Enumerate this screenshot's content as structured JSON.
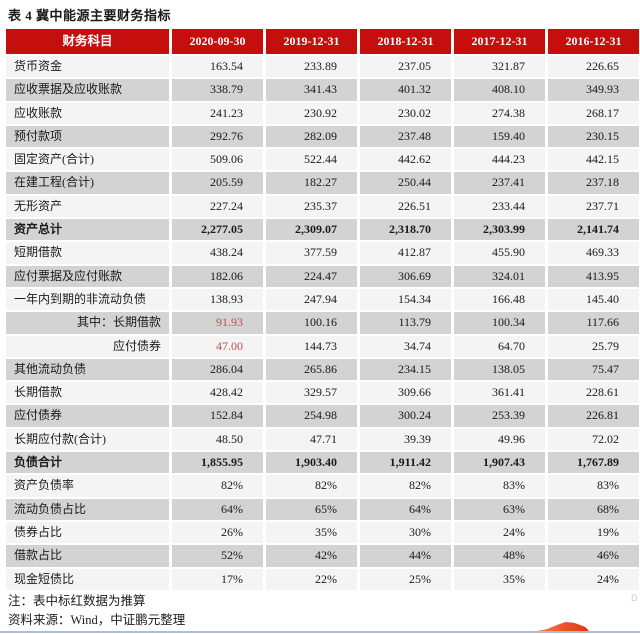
{
  "title": "表 4 冀中能源主要财务指标",
  "table": {
    "columns": [
      "财务科目",
      "2020-09-30",
      "2019-12-31",
      "2018-12-31",
      "2017-12-31",
      "2016-12-31"
    ],
    "rows": [
      {
        "label": "货币资金",
        "values": [
          "163.54",
          "233.89",
          "237.05",
          "321.87",
          "226.65"
        ]
      },
      {
        "label": "应收票据及应收账款",
        "values": [
          "338.79",
          "341.43",
          "401.32",
          "408.10",
          "349.93"
        ]
      },
      {
        "label": "应收账款",
        "values": [
          "241.23",
          "230.92",
          "230.02",
          "274.38",
          "268.17"
        ]
      },
      {
        "label": "预付款项",
        "values": [
          "292.76",
          "282.09",
          "237.48",
          "159.40",
          "230.15"
        ]
      },
      {
        "label": "固定资产(合计)",
        "values": [
          "509.06",
          "522.44",
          "442.62",
          "444.23",
          "442.15"
        ]
      },
      {
        "label": "在建工程(合计)",
        "values": [
          "205.59",
          "182.27",
          "250.44",
          "237.41",
          "237.18"
        ]
      },
      {
        "label": "无形资产",
        "values": [
          "227.24",
          "235.37",
          "226.51",
          "233.44",
          "237.71"
        ]
      },
      {
        "label": "资产总计",
        "bold": true,
        "values": [
          "2,277.05",
          "2,309.07",
          "2,318.70",
          "2,303.99",
          "2,141.74"
        ]
      },
      {
        "label": "短期借款",
        "values": [
          "438.24",
          "377.59",
          "412.87",
          "455.90",
          "469.33"
        ]
      },
      {
        "label": "应付票据及应付账款",
        "values": [
          "182.06",
          "224.47",
          "306.69",
          "324.01",
          "413.95"
        ]
      },
      {
        "label": "一年内到期的非流动负债",
        "values": [
          "138.93",
          "247.94",
          "154.34",
          "166.48",
          "145.40"
        ]
      },
      {
        "label": "其中：长期借款",
        "indent": true,
        "red_cols": [
          0
        ],
        "values": [
          "91.93",
          "100.16",
          "113.79",
          "100.34",
          "117.66"
        ]
      },
      {
        "label": "应付债券",
        "indent": true,
        "red_cols": [
          0
        ],
        "values": [
          "47.00",
          "144.73",
          "34.74",
          "64.70",
          "25.79"
        ]
      },
      {
        "label": "其他流动负债",
        "values": [
          "286.04",
          "265.86",
          "234.15",
          "138.05",
          "75.47"
        ]
      },
      {
        "label": "长期借款",
        "values": [
          "428.42",
          "329.57",
          "309.66",
          "361.41",
          "228.61"
        ]
      },
      {
        "label": "应付债券",
        "values": [
          "152.84",
          "254.98",
          "300.24",
          "253.39",
          "226.81"
        ]
      },
      {
        "label": "长期应付款(合计)",
        "values": [
          "48.50",
          "47.71",
          "39.39",
          "49.96",
          "72.02"
        ]
      },
      {
        "label": "负债合计",
        "bold": true,
        "values": [
          "1,855.95",
          "1,903.40",
          "1,911.42",
          "1,907.43",
          "1,767.89"
        ]
      },
      {
        "label": "资产负债率",
        "values": [
          "82%",
          "82%",
          "82%",
          "83%",
          "83%"
        ]
      },
      {
        "label": "流动负债占比",
        "values": [
          "64%",
          "65%",
          "64%",
          "63%",
          "68%"
        ]
      },
      {
        "label": "债券占比",
        "values": [
          "26%",
          "35%",
          "30%",
          "24%",
          "19%"
        ]
      },
      {
        "label": "借款占比",
        "values": [
          "52%",
          "42%",
          "44%",
          "48%",
          "46%"
        ]
      },
      {
        "label": "现金短债比",
        "values": [
          "17%",
          "22%",
          "25%",
          "35%",
          "24%"
        ]
      }
    ]
  },
  "notes": [
    "注：表中标红数据为推算",
    "资料来源：Wind，中证鹏元整理"
  ],
  "artifact_glyph": "D",
  "colors": {
    "header_bg": "#C50E0E",
    "row_gray": "#D3D3D3",
    "row_light": "#F4F4F4",
    "red_text": "#C0504D",
    "bottom_line": "#AEC0CE",
    "swoosh": "#E8501E"
  }
}
